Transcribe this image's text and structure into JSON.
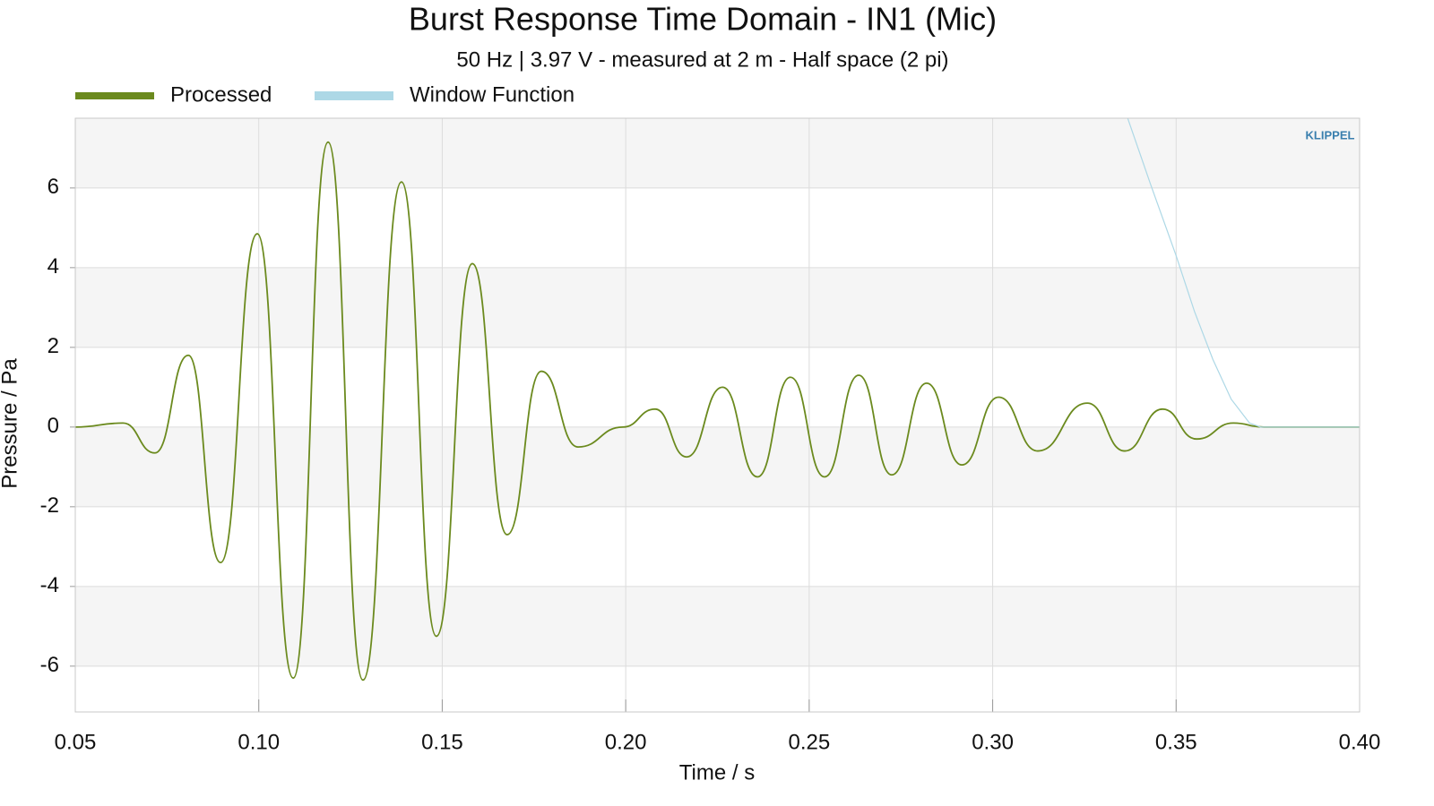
{
  "chart_data": {
    "type": "line",
    "title": "Burst Response Time Domain - IN1 (Mic)",
    "subtitle": "50 Hz | 3.97 V - measured at 2 m - Half space (2 pi)",
    "x_label": "Time / s",
    "y_label": "Pressure / Pa",
    "logo": "KLIPPEL",
    "xlim": [
      0.05,
      0.4
    ],
    "ylim": [
      -7.15,
      7.75
    ],
    "xticks": [
      0.05,
      {
        "value": 0.1,
        "label": "0.10"
      },
      0.15,
      {
        "value": 0.2,
        "label": "0.20"
      },
      0.25,
      {
        "value": 0.3,
        "label": "0.30"
      },
      0.35,
      {
        "value": 0.4,
        "label": "0.40"
      }
    ],
    "yticks": [
      -6,
      -4,
      -2,
      0,
      2,
      4,
      6
    ],
    "grid": true,
    "legend": "top-left",
    "series": [
      {
        "name": "Processed",
        "color": "#6b8a1e",
        "smooth": true,
        "x": [
          0.05,
          0.063,
          0.0717,
          0.0808,
          0.0896,
          0.0996,
          0.1094,
          0.1189,
          0.1284,
          0.1389,
          0.1484,
          0.1582,
          0.1677,
          0.177,
          0.187,
          0.1992,
          0.208,
          0.2166,
          0.2264,
          0.2359,
          0.2449,
          0.2542,
          0.2635,
          0.2725,
          0.282,
          0.2916,
          0.3016,
          0.3123,
          0.3258,
          0.336,
          0.3463,
          0.3556,
          0.3656,
          0.3739,
          0.4
        ],
        "values": [
          0,
          0.1,
          -0.65,
          1.8,
          -3.4,
          4.85,
          -6.3,
          7.15,
          -6.35,
          6.15,
          -5.25,
          4.1,
          -2.7,
          1.4,
          -0.5,
          0,
          0.45,
          -0.75,
          1.0,
          -1.25,
          1.25,
          -1.25,
          1.3,
          -1.2,
          1.1,
          -0.95,
          0.75,
          -0.6,
          0.6,
          -0.6,
          0.45,
          -0.3,
          0.1,
          0,
          0
        ]
      },
      {
        "name": "Window Function",
        "color": "#add8e6",
        "smooth": false,
        "x": [
          0.3368,
          0.343,
          0.35,
          0.355,
          0.36,
          0.365,
          0.37,
          0.373,
          0.4
        ],
        "values": [
          7.75,
          6.1,
          4.3,
          2.9,
          1.7,
          0.7,
          0.1,
          0,
          0
        ]
      }
    ]
  }
}
